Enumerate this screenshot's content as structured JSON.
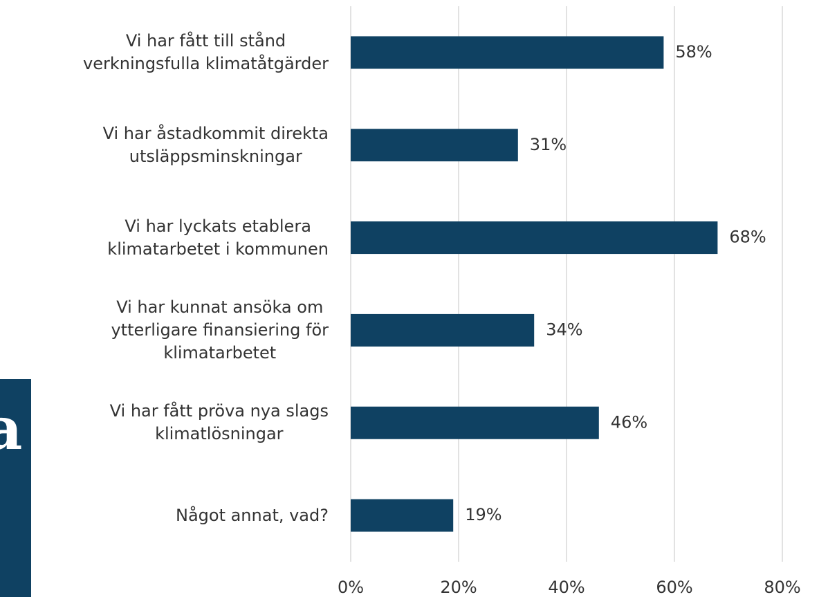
{
  "side_panel": {
    "lines": [
      "a",
      ","
    ]
  },
  "chart_data": {
    "type": "barh",
    "categories": [
      "Vi har fått till stånd\nverkningsfulla klimatåtgärder",
      "Vi har åstadkommit direkta\nutsläppsminskningar",
      "Vi har lyckats etablera\nklimatarbetet i kommunen",
      "Vi har kunnat ansöka om\nytterligare finansiering för\nklimatarbetet",
      "Vi har fått pröva nya slags\nklimatlösningar",
      "Något annat, vad?"
    ],
    "values": [
      58,
      31,
      68,
      34,
      46,
      19
    ],
    "value_labels": [
      "58%",
      "31%",
      "68%",
      "34%",
      "46%",
      "19%"
    ],
    "color": "#0f4162",
    "xlim": [
      0,
      80
    ],
    "xticks": [
      {
        "value": 0,
        "label": "0%"
      },
      {
        "value": 20,
        "label": "20%"
      },
      {
        "value": 40,
        "label": "40%"
      },
      {
        "value": 60,
        "label": "60%"
      },
      {
        "value": 80,
        "label": "80%"
      }
    ],
    "grid": true
  }
}
